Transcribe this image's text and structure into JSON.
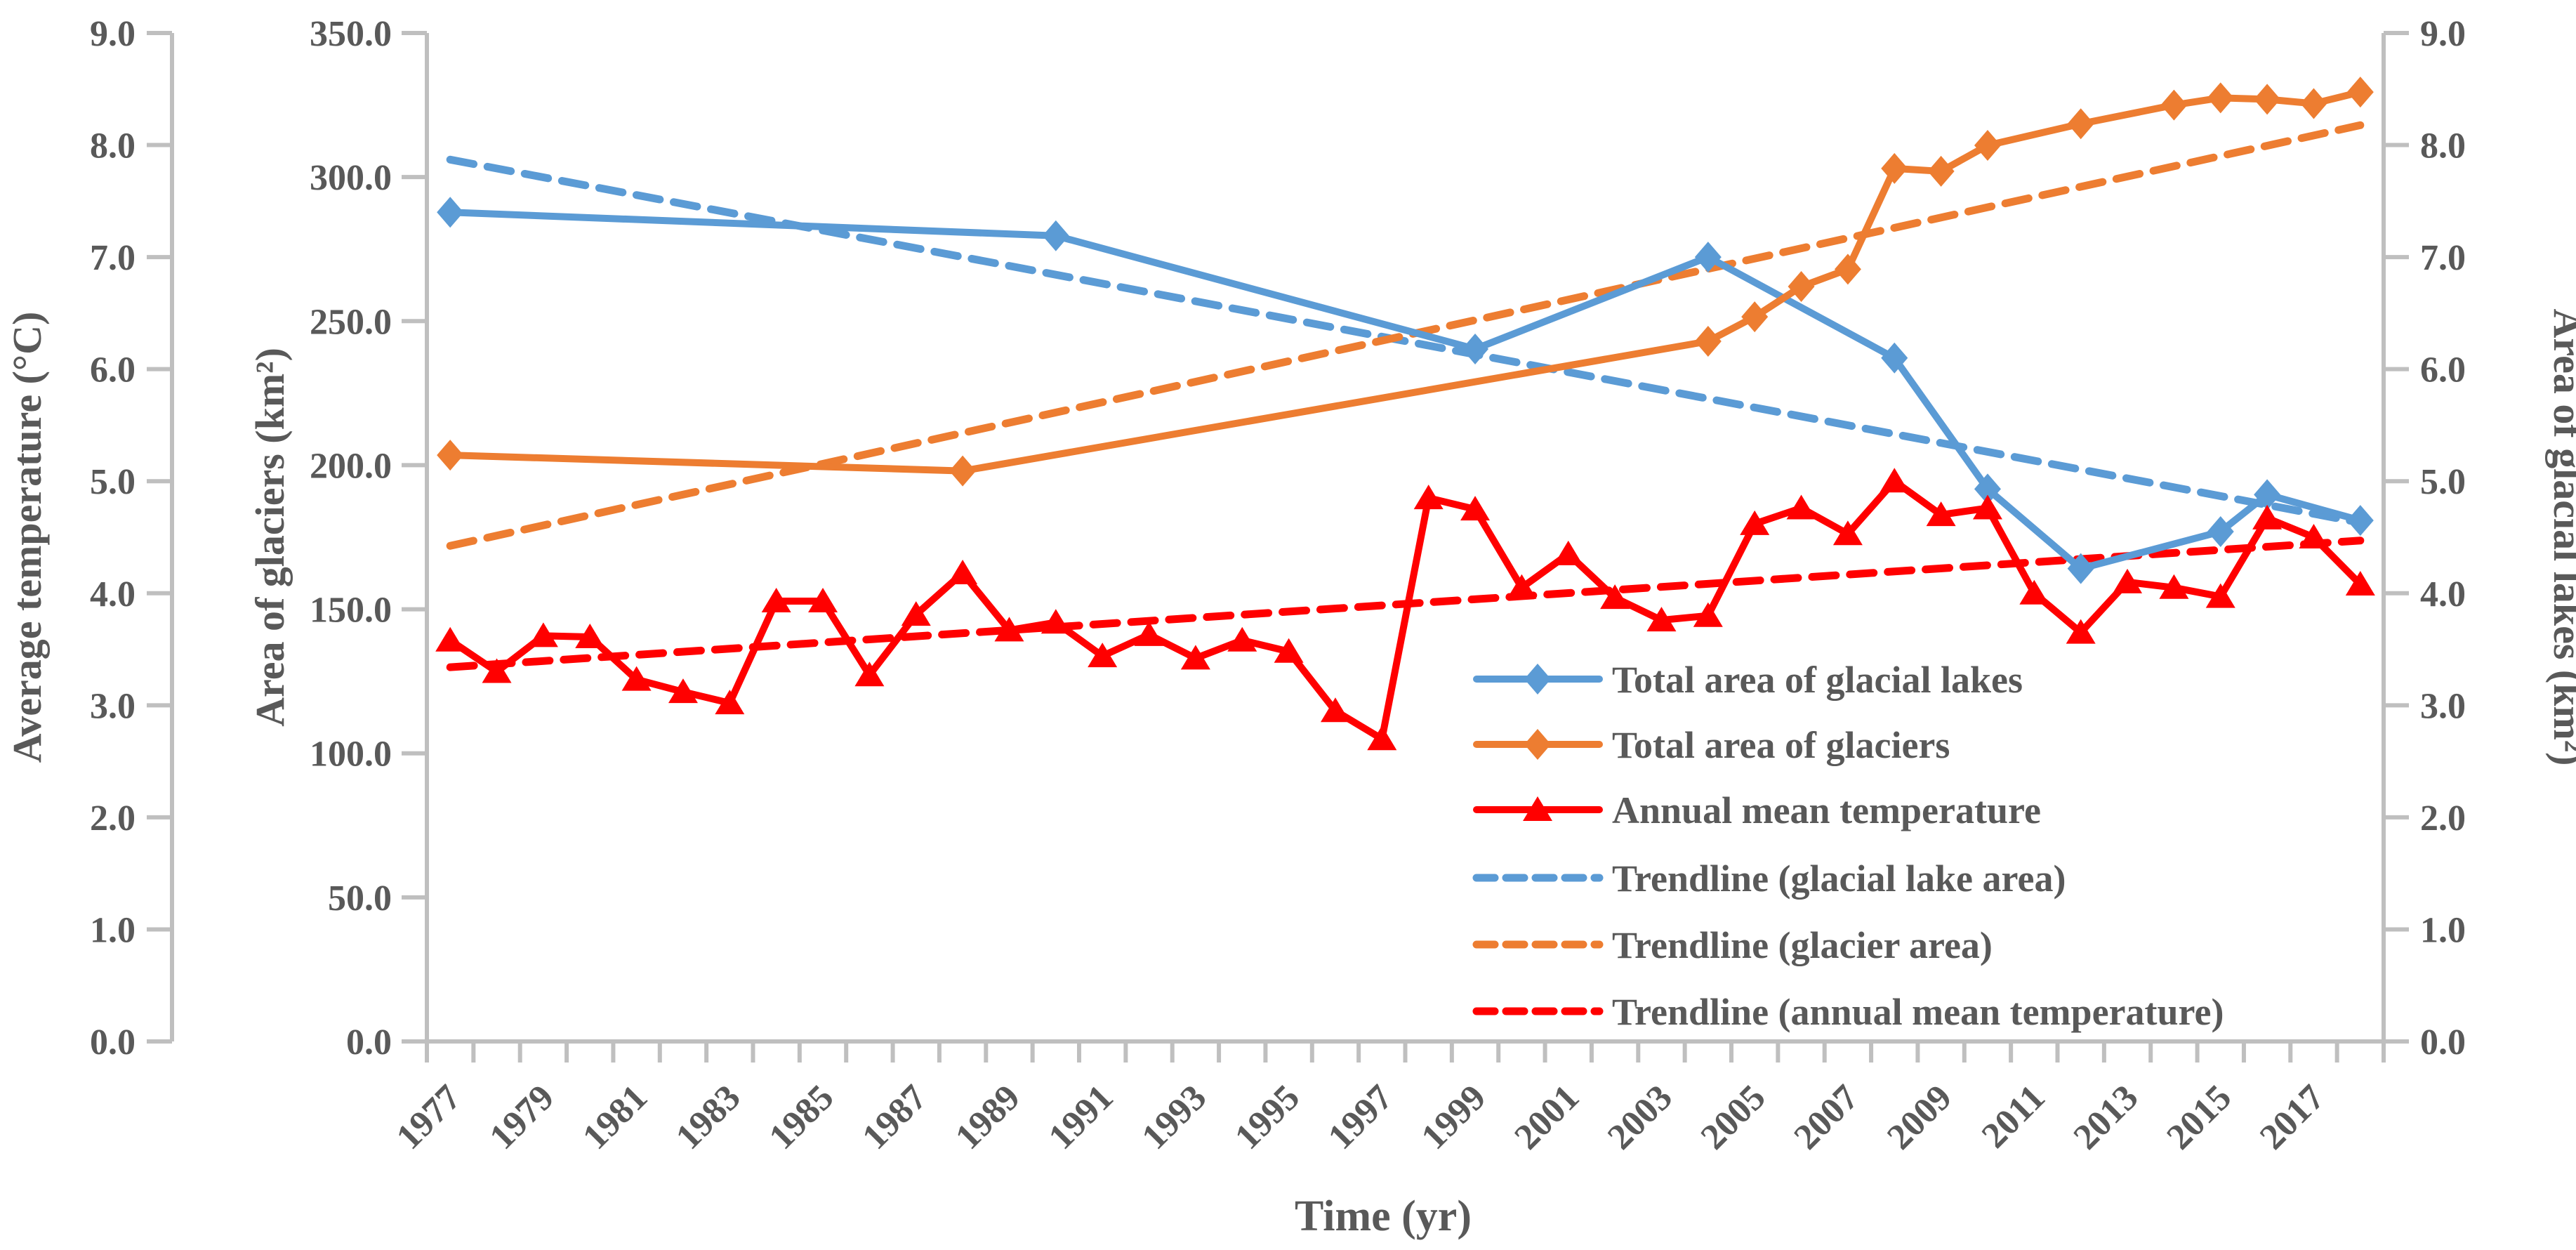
{
  "chart_data": {
    "type": "line",
    "title": "",
    "xlabel": "Time (yr)",
    "x_range": [
      1977,
      2018
    ],
    "grid": false,
    "axes": {
      "left_temp": {
        "title": "Average temperature (°C)",
        "range": [
          0.0,
          9.0
        ],
        "tick_labels": [
          "0.0",
          "1.0",
          "2.0",
          "3.0",
          "4.0",
          "5.0",
          "6.0",
          "7.0",
          "8.0",
          "9.0"
        ]
      },
      "left_glacier": {
        "title": "Area of glaciers (km²)",
        "range": [
          0.0,
          350.0
        ],
        "tick_labels": [
          "0.0",
          "50.0",
          "100.0",
          "150.0",
          "200.0",
          "250.0",
          "300.0",
          "350.0"
        ]
      },
      "right_lakes": {
        "title": "Area of glacial lakes (km²)",
        "range": [
          0.0,
          9.0
        ],
        "tick_labels": [
          "0.0",
          "1.0",
          "2.0",
          "3.0",
          "4.0",
          "5.0",
          "6.0",
          "7.0",
          "8.0",
          "9.0"
        ]
      },
      "x_time": {
        "title": "Time (yr)",
        "tick_years_labeled": [
          1977,
          1979,
          1981,
          1983,
          1985,
          1987,
          1989,
          1991,
          1993,
          1995,
          1997,
          1999,
          2001,
          2003,
          2005,
          2007,
          2009,
          2011,
          2013,
          2015,
          2017
        ]
      }
    },
    "series": [
      {
        "id": "glacial-lakes",
        "name": "Total area of glacial lakes",
        "color": "#5B9BD5",
        "marker": "diamond",
        "value_axis": "lakes_0_9",
        "points": [
          [
            1977,
            7.4
          ],
          [
            1990,
            7.19
          ],
          [
            1999,
            6.18
          ],
          [
            2004,
            7.0
          ],
          [
            2008,
            6.1
          ],
          [
            2010,
            4.93
          ],
          [
            2012,
            4.22
          ],
          [
            2015,
            4.55
          ],
          [
            2016,
            4.88
          ],
          [
            2018,
            4.65
          ]
        ]
      },
      {
        "id": "glaciers",
        "name": "Total area of glaciers",
        "color": "#ED7D31",
        "marker": "diamond",
        "value_axis": "glaciers_0_350",
        "points": [
          [
            1977,
            203.5
          ],
          [
            1988,
            198.0
          ],
          [
            2004,
            243.0
          ],
          [
            2005,
            251.5
          ],
          [
            2006,
            262.0
          ],
          [
            2007,
            268.0
          ],
          [
            2008,
            303.0
          ],
          [
            2009,
            302.0
          ],
          [
            2010,
            311.0
          ],
          [
            2012,
            318.5
          ],
          [
            2014,
            325.0
          ],
          [
            2015,
            327.5
          ],
          [
            2016,
            327.0
          ],
          [
            2017,
            325.5
          ],
          [
            2018,
            329.5
          ]
        ]
      },
      {
        "id": "temperature",
        "name": "Annual mean temperature",
        "color": "#FF0000",
        "marker": "triangle",
        "value_axis": "temp_0_9",
        "points": [
          [
            1977,
            3.58
          ],
          [
            1978,
            3.3
          ],
          [
            1979,
            3.62
          ],
          [
            1980,
            3.61
          ],
          [
            1981,
            3.23
          ],
          [
            1982,
            3.12
          ],
          [
            1983,
            3.02
          ],
          [
            1984,
            3.93
          ],
          [
            1985,
            3.93
          ],
          [
            1986,
            3.27
          ],
          [
            1987,
            3.81
          ],
          [
            1988,
            4.18
          ],
          [
            1989,
            3.67
          ],
          [
            1990,
            3.74
          ],
          [
            1991,
            3.44
          ],
          [
            1992,
            3.63
          ],
          [
            1993,
            3.42
          ],
          [
            1994,
            3.58
          ],
          [
            1995,
            3.48
          ],
          [
            1996,
            2.95
          ],
          [
            1997,
            2.7
          ],
          [
            1998,
            4.85
          ],
          [
            1999,
            4.75
          ],
          [
            2000,
            4.05
          ],
          [
            2001,
            4.35
          ],
          [
            2002,
            3.96
          ],
          [
            2003,
            3.76
          ],
          [
            2004,
            3.8
          ],
          [
            2005,
            4.62
          ],
          [
            2006,
            4.76
          ],
          [
            2007,
            4.53
          ],
          [
            2008,
            5.0
          ],
          [
            2009,
            4.7
          ],
          [
            2010,
            4.76
          ],
          [
            2011,
            4.0
          ],
          [
            2012,
            3.65
          ],
          [
            2013,
            4.1
          ],
          [
            2014,
            4.05
          ],
          [
            2015,
            3.97
          ],
          [
            2016,
            4.67
          ],
          [
            2017,
            4.5
          ],
          [
            2018,
            4.08
          ]
        ]
      }
    ],
    "trendlines": [
      {
        "id": "trend-lakes",
        "name": "Trendline (glacial lake area)",
        "color": "#5B9BD5",
        "value_axis": "lakes_0_9",
        "start": [
          1977,
          7.87
        ],
        "end": [
          2018,
          4.63
        ]
      },
      {
        "id": "trend-glacier",
        "name": "Trendline (glacier area)",
        "color": "#ED7D31",
        "value_axis": "glaciers_0_350",
        "start": [
          1977,
          172.0
        ],
        "end": [
          2018,
          318.0
        ]
      },
      {
        "id": "trend-temp",
        "name": "Trendline (annual mean temperature)",
        "color": "#FF0000",
        "value_axis": "temp_0_9",
        "start": [
          1977,
          3.34
        ],
        "end": [
          2018,
          4.47
        ]
      }
    ],
    "legend": {
      "position": "inside-right-bottom",
      "entries": [
        {
          "label": "Total area of glacial lakes",
          "color": "#5B9BD5",
          "style": "solid",
          "marker": "diamond"
        },
        {
          "label": "Total area of glaciers",
          "color": "#ED7D31",
          "style": "solid",
          "marker": "diamond"
        },
        {
          "label": "Annual mean temperature",
          "color": "#FF0000",
          "style": "solid",
          "marker": "triangle"
        },
        {
          "label": "Trendline (glacial lake area)",
          "color": "#5B9BD5",
          "style": "dashed",
          "marker": "none"
        },
        {
          "label": "Trendline (glacier area)",
          "color": "#ED7D31",
          "style": "dashed",
          "marker": "none"
        },
        {
          "label": "Trendline (annual mean temperature)",
          "color": "#FF0000",
          "style": "dashed",
          "marker": "none"
        }
      ]
    },
    "colors": {
      "lakes_blue": "#5B9BD5",
      "glacier_orange": "#ED7D31",
      "temperature_red": "#FF0000",
      "axis_gray": "#BFBFBF",
      "text_gray": "#595959"
    }
  }
}
